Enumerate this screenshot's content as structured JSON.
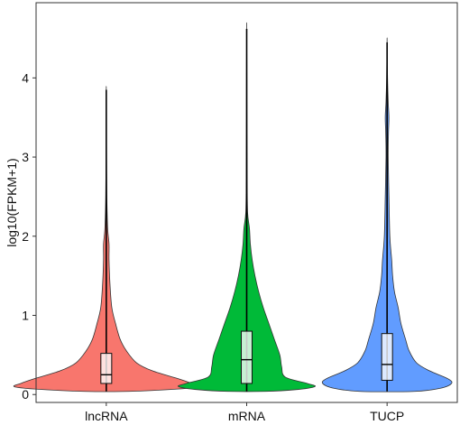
{
  "chart_data": {
    "type": "violin",
    "ylabel": "log10(FPKM+1)",
    "xlabel": "",
    "ylim": [
      -0.1,
      4.95
    ],
    "yticks": [
      0,
      1,
      2,
      3,
      4
    ],
    "grid": false,
    "legend": "none",
    "categories": [
      "lncRNA",
      "mRNA",
      "TUCP"
    ],
    "series": [
      {
        "category": "lncRNA",
        "color": "#F8766D",
        "min": 0.04,
        "max": 3.85,
        "q1": 0.14,
        "median": 0.25,
        "q3": 0.52,
        "density": [
          [
            0.04,
            0.24
          ],
          [
            0.07,
            0.78
          ],
          [
            0.1,
            1.0
          ],
          [
            0.14,
            0.93
          ],
          [
            0.2,
            0.78
          ],
          [
            0.3,
            0.5
          ],
          [
            0.4,
            0.33
          ],
          [
            0.55,
            0.22
          ],
          [
            0.7,
            0.15
          ],
          [
            0.9,
            0.1
          ],
          [
            1.1,
            0.06
          ],
          [
            1.4,
            0.04
          ],
          [
            1.7,
            0.03
          ],
          [
            1.9,
            0.03
          ],
          [
            2.1,
            0.015
          ],
          [
            2.5,
            0.006
          ],
          [
            3.0,
            0.003
          ],
          [
            3.5,
            0.002
          ],
          [
            3.85,
            0.0
          ]
        ]
      },
      {
        "category": "mRNA",
        "color": "#00BA38",
        "min": 0.04,
        "max": 4.62,
        "q1": 0.14,
        "median": 0.44,
        "q3": 0.8,
        "density": [
          [
            0.04,
            0.2
          ],
          [
            0.06,
            0.52
          ],
          [
            0.1,
            0.74
          ],
          [
            0.14,
            0.66
          ],
          [
            0.22,
            0.42
          ],
          [
            0.35,
            0.38
          ],
          [
            0.5,
            0.36
          ],
          [
            0.7,
            0.3
          ],
          [
            0.9,
            0.24
          ],
          [
            1.1,
            0.18
          ],
          [
            1.3,
            0.13
          ],
          [
            1.5,
            0.09
          ],
          [
            1.7,
            0.06
          ],
          [
            1.9,
            0.04
          ],
          [
            2.1,
            0.03
          ],
          [
            2.3,
            0.01
          ],
          [
            2.7,
            0.005
          ],
          [
            3.3,
            0.003
          ],
          [
            4.0,
            0.002
          ],
          [
            4.62,
            0.0
          ]
        ]
      },
      {
        "category": "TUCP",
        "color": "#619CFF",
        "min": 0.04,
        "max": 4.45,
        "q1": 0.18,
        "median": 0.38,
        "q3": 0.77,
        "density": [
          [
            0.04,
            0.3
          ],
          [
            0.08,
            0.58
          ],
          [
            0.14,
            0.7
          ],
          [
            0.2,
            0.66
          ],
          [
            0.3,
            0.46
          ],
          [
            0.4,
            0.32
          ],
          [
            0.55,
            0.24
          ],
          [
            0.7,
            0.2
          ],
          [
            0.9,
            0.15
          ],
          [
            1.1,
            0.12
          ],
          [
            1.3,
            0.08
          ],
          [
            1.5,
            0.06
          ],
          [
            1.7,
            0.05
          ],
          [
            2.0,
            0.03
          ],
          [
            2.5,
            0.02
          ],
          [
            3.0,
            0.012
          ],
          [
            3.3,
            0.015
          ],
          [
            3.5,
            0.02
          ],
          [
            3.7,
            0.012
          ],
          [
            4.0,
            0.005
          ],
          [
            4.45,
            0.0
          ]
        ]
      }
    ]
  }
}
